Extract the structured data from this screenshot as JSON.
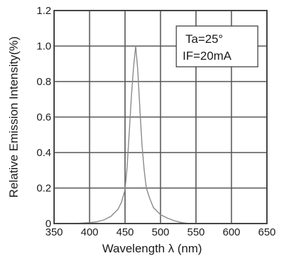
{
  "chart_data": {
    "type": "line",
    "title": "",
    "xlabel": "Wavelength λ (nm)",
    "ylabel": "Relative Emission Intensity(%)",
    "xlim": [
      350,
      650
    ],
    "ylim": [
      0,
      1.2
    ],
    "x_ticks": [
      350,
      400,
      450,
      500,
      550,
      600,
      650
    ],
    "y_ticks": [
      0,
      0.2,
      0.4,
      0.6,
      0.8,
      1.0,
      1.2
    ],
    "x_tick_labels": [
      "350",
      "400",
      "450",
      "500",
      "550",
      "600",
      "650"
    ],
    "y_tick_labels": [
      "0",
      "0.2",
      "0.4",
      "0.6",
      "0.8",
      "1.0",
      "1.2"
    ],
    "grid": true,
    "annotation": [
      "Ta=25°",
      "IF=20mA"
    ],
    "series": [
      {
        "x": [
          360,
          380,
          400,
          410,
          420,
          430,
          440,
          445,
          450,
          453,
          456,
          459,
          462,
          465,
          468,
          471,
          474,
          477,
          480,
          485,
          490,
          500,
          510,
          520,
          530,
          540,
          550,
          560,
          570
        ],
        "y": [
          0.0,
          0.0,
          0.005,
          0.01,
          0.02,
          0.04,
          0.08,
          0.12,
          0.19,
          0.32,
          0.52,
          0.72,
          0.88,
          1.0,
          0.86,
          0.64,
          0.44,
          0.3,
          0.2,
          0.14,
          0.09,
          0.05,
          0.03,
          0.015,
          0.005,
          0.0,
          0.0,
          0.0,
          0.0
        ]
      }
    ]
  }
}
